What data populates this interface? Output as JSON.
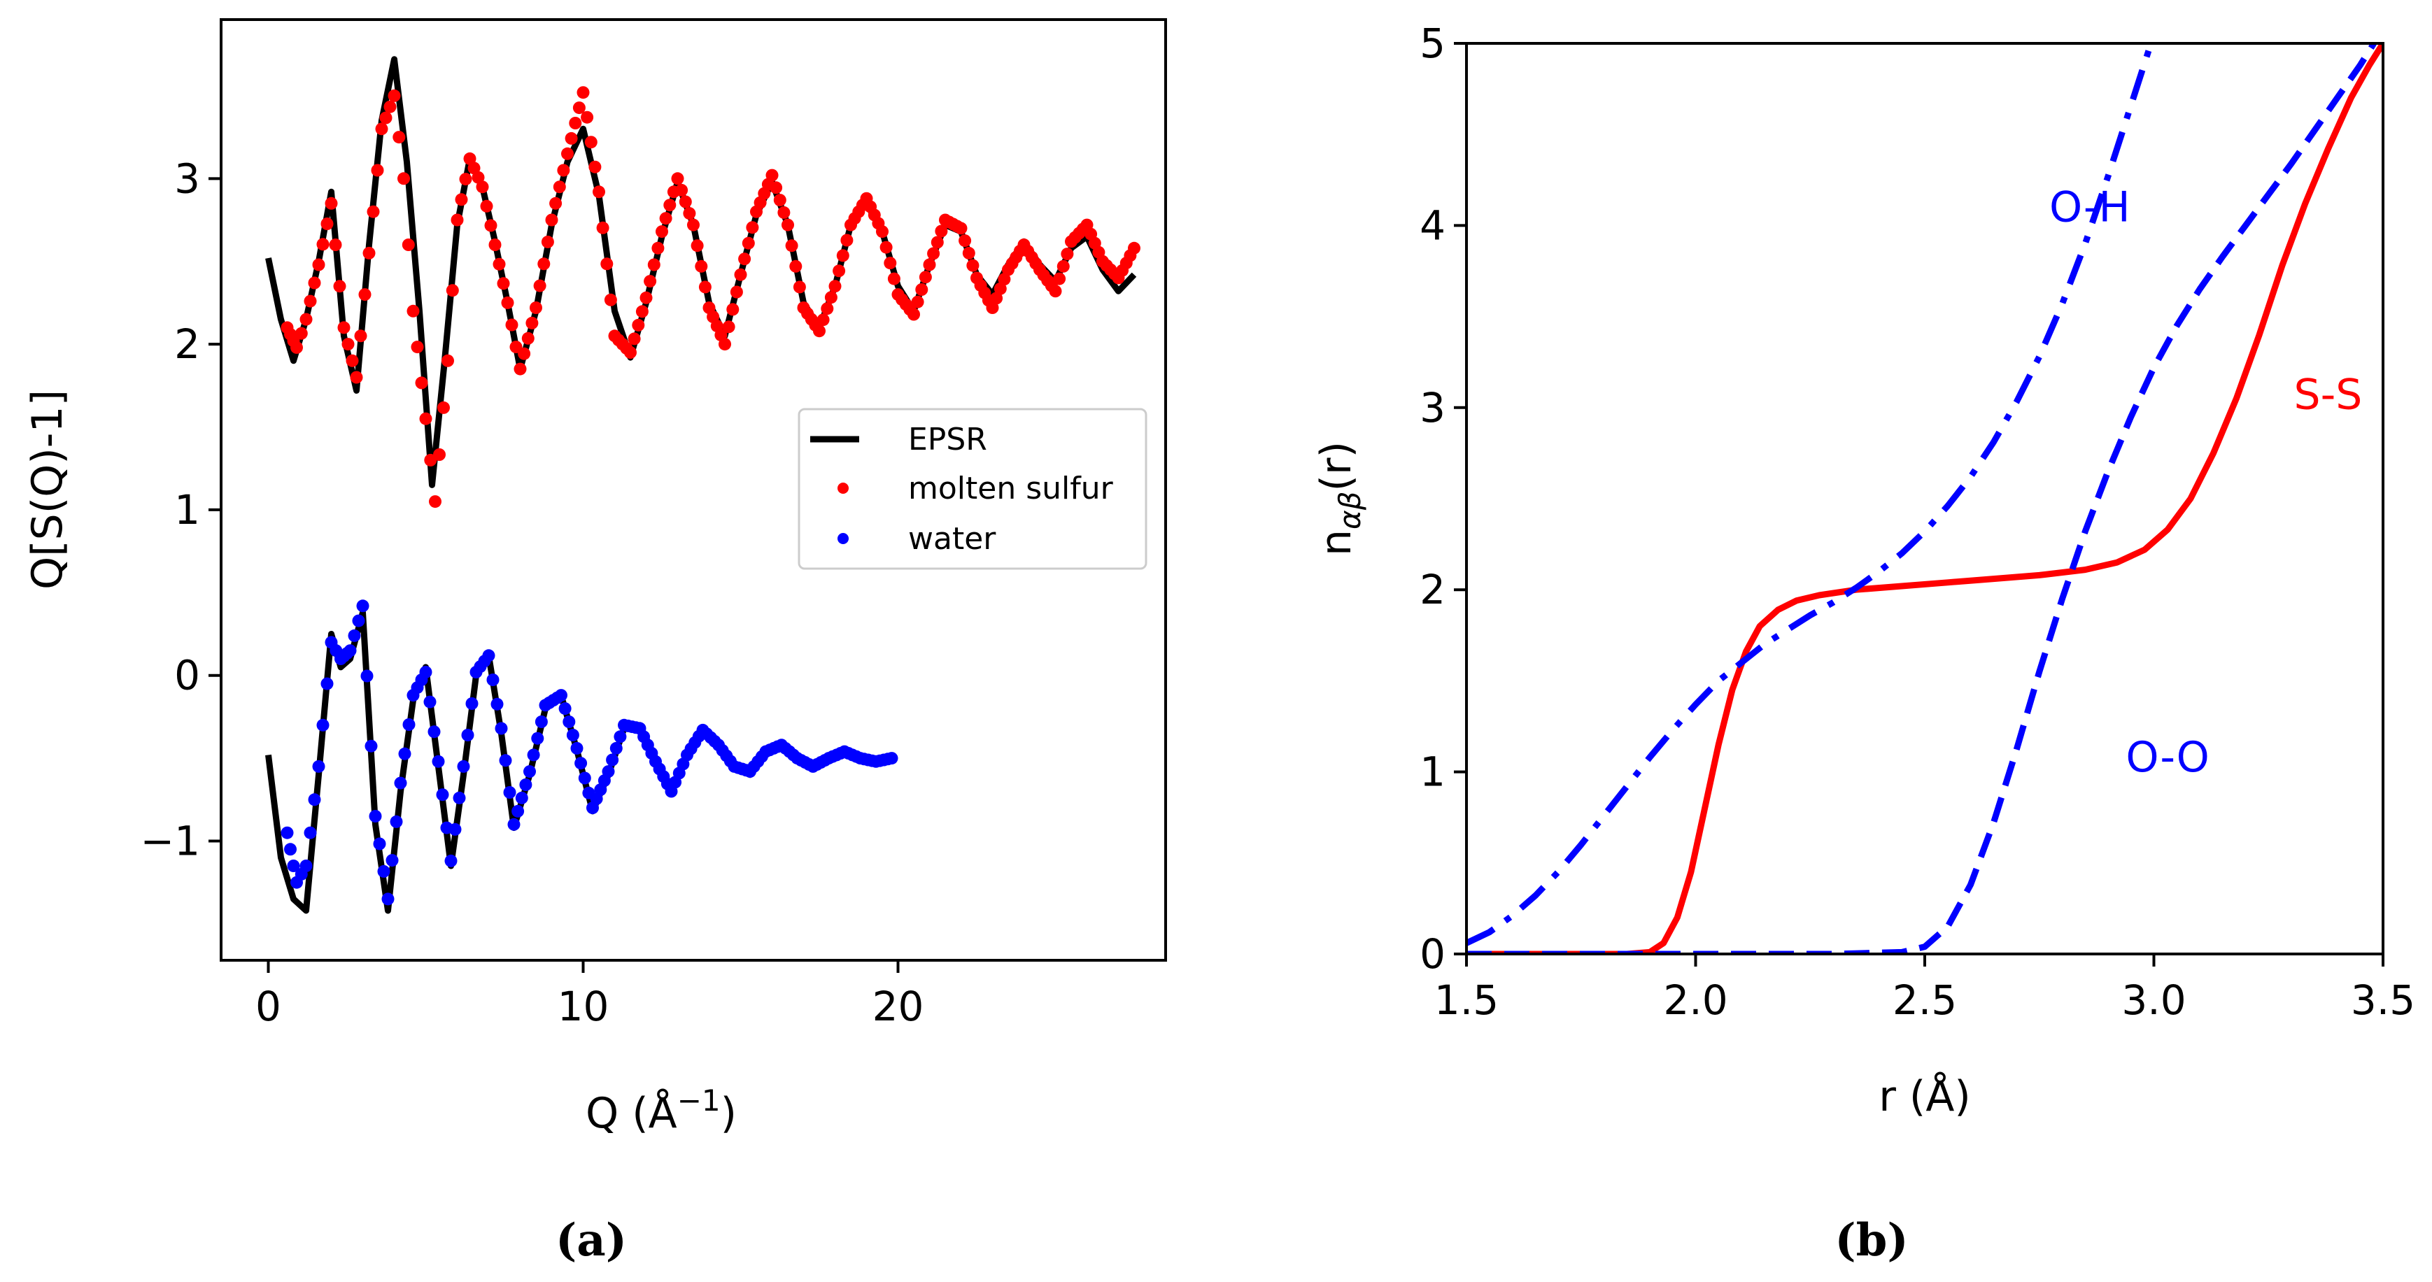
{
  "chart_data": [
    {
      "type": "line",
      "panel_label": "(a)",
      "xlabel": "Q (Å",
      "xlabel_sup": "−1",
      "xlabel_close": ")",
      "ylabel": "Q[S(Q)-1]",
      "xlim": [
        -1.5,
        28.5
      ],
      "ylim": [
        -1.72,
        3.96
      ],
      "xticks": [
        0,
        10,
        20
      ],
      "xtick_labels": [
        "0",
        "10",
        "20"
      ],
      "yticks": [
        -1,
        0,
        1,
        2,
        3
      ],
      "ytick_labels": [
        "−1",
        "0",
        "1",
        "2",
        "3"
      ],
      "grid": false,
      "legend_position": "center-right",
      "series": [
        {
          "name": "EPSR",
          "style": "solid-line",
          "color": "#000000",
          "groups": [
            {
              "x": [
                0.0,
                0.4,
                0.8,
                1.2,
                1.6,
                2.0,
                2.4,
                2.8,
                3.2,
                3.6,
                4.0,
                4.4,
                4.8,
                5.2,
                5.6,
                6.0,
                6.4,
                6.8,
                7.2,
                7.6,
                8.0,
                8.5,
                9.0,
                9.5,
                10.0,
                10.5,
                11.0,
                11.5,
                12.0,
                12.5,
                13.0,
                13.5,
                14.0,
                14.5,
                15.0,
                15.5,
                16.0,
                16.5,
                17.0,
                17.5,
                18.0,
                18.5,
                19.0,
                19.5,
                20.0,
                20.5,
                21.0,
                21.5,
                22.0,
                22.5,
                23.0,
                23.5,
                24.0,
                24.5,
                25.0,
                25.5,
                26.0,
                26.5,
                27.0,
                27.5
              ],
              "y": [
                2.52,
                2.15,
                1.9,
                2.15,
                2.5,
                2.92,
                2.05,
                1.72,
                2.6,
                3.35,
                3.72,
                3.1,
                2.2,
                1.15,
                1.9,
                2.72,
                3.12,
                2.95,
                2.62,
                2.25,
                1.85,
                2.2,
                2.72,
                3.1,
                3.3,
                2.9,
                2.2,
                1.92,
                2.25,
                2.65,
                2.98,
                2.72,
                2.25,
                2.05,
                2.42,
                2.78,
                2.98,
                2.72,
                2.25,
                2.1,
                2.35,
                2.72,
                2.85,
                2.68,
                2.35,
                2.2,
                2.48,
                2.72,
                2.68,
                2.42,
                2.3,
                2.48,
                2.62,
                2.48,
                2.38,
                2.58,
                2.65,
                2.45,
                2.32,
                2.42
              ]
            },
            {
              "x": [
                0.0,
                0.4,
                0.8,
                1.2,
                1.6,
                2.0,
                2.3,
                2.6,
                3.0,
                3.4,
                3.8,
                4.2,
                4.6,
                5.0,
                5.4,
                5.8,
                6.2,
                6.6,
                7.0,
                7.4,
                7.8,
                8.3,
                8.8,
                9.3,
                9.8,
                10.3,
                10.8,
                11.3,
                11.8,
                12.3,
                12.8,
                13.3,
                13.8,
                14.3,
                14.8,
                15.3,
                15.8,
                16.3,
                16.8,
                17.3,
                17.8,
                18.3,
                18.8,
                19.3,
                19.8
              ],
              "y": [
                -0.48,
                -1.1,
                -1.35,
                -1.42,
                -0.6,
                0.25,
                0.05,
                0.1,
                0.38,
                -0.9,
                -1.42,
                -0.7,
                -0.15,
                0.05,
                -0.55,
                -1.15,
                -0.6,
                0.0,
                0.12,
                -0.35,
                -0.92,
                -0.6,
                -0.2,
                -0.12,
                -0.45,
                -0.82,
                -0.6,
                -0.32,
                -0.3,
                -0.5,
                -0.7,
                -0.48,
                -0.35,
                -0.4,
                -0.55,
                -0.6,
                -0.48,
                -0.42,
                -0.48,
                -0.55,
                -0.5,
                -0.47,
                -0.5,
                -0.53,
                -0.5
              ]
            }
          ]
        },
        {
          "name": "molten sulfur",
          "style": "dots",
          "color": "#ff0000",
          "x": [
            0.6,
            0.9,
            1.2,
            1.6,
            2.0,
            2.4,
            2.8,
            3.2,
            3.6,
            4.0,
            4.3,
            4.6,
            5.0,
            5.3,
            5.7,
            6.0,
            6.4,
            6.8,
            7.2,
            7.6,
            8.0,
            8.5,
            9.0,
            9.5,
            10.0,
            10.5,
            11.0,
            11.5,
            12.0,
            12.5,
            13.0,
            13.5,
            14.0,
            14.5,
            15.0,
            15.5,
            16.0,
            16.5,
            17.0,
            17.5,
            18.0,
            18.5,
            19.0,
            19.5,
            20.0,
            20.5,
            21.0,
            21.5,
            22.0,
            22.5,
            23.0,
            23.5,
            24.0,
            24.5,
            25.0,
            25.5,
            26.0,
            26.5,
            27.0,
            27.5
          ],
          "y": [
            2.1,
            1.98,
            2.15,
            2.48,
            2.85,
            2.1,
            1.8,
            2.55,
            3.3,
            3.5,
            3.0,
            2.2,
            1.55,
            1.05,
            1.9,
            2.75,
            3.12,
            2.95,
            2.6,
            2.25,
            1.85,
            2.22,
            2.75,
            3.15,
            3.52,
            2.92,
            2.05,
            1.95,
            2.28,
            2.68,
            3.0,
            2.72,
            2.22,
            2.0,
            2.42,
            2.8,
            3.02,
            2.72,
            2.22,
            2.08,
            2.35,
            2.72,
            2.88,
            2.68,
            2.3,
            2.18,
            2.48,
            2.75,
            2.7,
            2.4,
            2.22,
            2.45,
            2.6,
            2.45,
            2.32,
            2.62,
            2.72,
            2.5,
            2.4,
            2.58
          ]
        },
        {
          "name": "water",
          "style": "dots",
          "color": "#0000ff",
          "x": [
            0.6,
            0.9,
            1.2,
            1.6,
            2.0,
            2.3,
            2.6,
            3.0,
            3.4,
            3.8,
            4.2,
            4.6,
            5.0,
            5.4,
            5.8,
            6.2,
            6.6,
            7.0,
            7.4,
            7.8,
            8.3,
            8.8,
            9.3,
            9.8,
            10.3,
            10.8,
            11.3,
            11.8,
            12.3,
            12.8,
            13.3,
            13.8,
            14.3,
            14.8,
            15.3,
            15.8,
            16.3,
            16.8,
            17.3,
            17.8,
            18.3,
            18.8,
            19.3,
            19.8
          ],
          "y": [
            -0.95,
            -1.25,
            -1.15,
            -0.55,
            0.2,
            0.1,
            0.15,
            0.42,
            -0.85,
            -1.35,
            -0.65,
            -0.12,
            0.02,
            -0.52,
            -1.12,
            -0.55,
            0.02,
            0.12,
            -0.32,
            -0.9,
            -0.58,
            -0.18,
            -0.12,
            -0.44,
            -0.8,
            -0.58,
            -0.3,
            -0.32,
            -0.52,
            -0.7,
            -0.48,
            -0.33,
            -0.42,
            -0.55,
            -0.58,
            -0.46,
            -0.42,
            -0.5,
            -0.55,
            -0.5,
            -0.46,
            -0.5,
            -0.52,
            -0.5
          ]
        }
      ]
    },
    {
      "type": "line",
      "panel_label": "(b)",
      "xlabel": "r (Å)",
      "ylabel": "n",
      "ylabel_sub": "αβ",
      "ylabel_tail": "(r)",
      "xlim": [
        1.5,
        3.5
      ],
      "ylim": [
        0,
        5
      ],
      "xticks": [
        1.5,
        2.0,
        2.5,
        3.0,
        3.5
      ],
      "xtick_labels": [
        "1.5",
        "2.0",
        "2.5",
        "3.0",
        "3.5"
      ],
      "yticks": [
        0,
        1,
        2,
        3,
        4,
        5
      ],
      "ytick_labels": [
        "0",
        "1",
        "2",
        "3",
        "4",
        "5"
      ],
      "grid": false,
      "series": [
        {
          "name": "S-S",
          "style": "solid",
          "color": "#ff0000",
          "x": [
            1.5,
            1.85,
            1.9,
            1.93,
            1.96,
            1.99,
            2.02,
            2.05,
            2.08,
            2.11,
            2.14,
            2.18,
            2.22,
            2.27,
            2.35,
            2.45,
            2.55,
            2.65,
            2.75,
            2.85,
            2.92,
            2.98,
            3.03,
            3.08,
            3.13,
            3.18,
            3.23,
            3.28,
            3.33,
            3.38,
            3.43,
            3.47,
            3.5
          ],
          "y": [
            0.0,
            0.0,
            0.01,
            0.06,
            0.2,
            0.45,
            0.8,
            1.15,
            1.45,
            1.66,
            1.8,
            1.89,
            1.94,
            1.97,
            2.0,
            2.02,
            2.04,
            2.06,
            2.08,
            2.11,
            2.15,
            2.22,
            2.33,
            2.5,
            2.75,
            3.05,
            3.4,
            3.78,
            4.12,
            4.42,
            4.7,
            4.88,
            5.0
          ]
        },
        {
          "name": "O-H",
          "style": "dash-dot",
          "color": "#0000ff",
          "x": [
            1.5,
            1.55,
            1.6,
            1.65,
            1.7,
            1.75,
            1.8,
            1.85,
            1.9,
            1.95,
            2.0,
            2.05,
            2.1,
            2.15,
            2.2,
            2.25,
            2.3,
            2.35,
            2.4,
            2.45,
            2.5,
            2.55,
            2.6,
            2.65,
            2.7,
            2.75,
            2.8,
            2.85,
            2.9,
            2.95,
            3.0
          ],
          "y": [
            0.06,
            0.12,
            0.21,
            0.32,
            0.45,
            0.6,
            0.76,
            0.92,
            1.08,
            1.23,
            1.37,
            1.5,
            1.6,
            1.7,
            1.78,
            1.86,
            1.93,
            2.01,
            2.1,
            2.2,
            2.32,
            2.46,
            2.62,
            2.81,
            3.03,
            3.28,
            3.57,
            3.9,
            4.27,
            4.66,
            5.05
          ]
        },
        {
          "name": "O-O",
          "style": "dashed",
          "color": "#0000ff",
          "x": [
            1.5,
            2.3,
            2.45,
            2.5,
            2.55,
            2.6,
            2.65,
            2.7,
            2.75,
            2.8,
            2.85,
            2.9,
            2.95,
            3.0,
            3.05,
            3.1,
            3.15,
            3.2,
            3.25,
            3.3,
            3.35,
            3.4,
            3.45,
            3.48
          ],
          "y": [
            0.0,
            0.0,
            0.01,
            0.04,
            0.15,
            0.38,
            0.72,
            1.12,
            1.55,
            1.95,
            2.32,
            2.65,
            2.95,
            3.22,
            3.45,
            3.65,
            3.83,
            4.0,
            4.17,
            4.34,
            4.52,
            4.7,
            4.88,
            5.0
          ]
        }
      ],
      "annotations": [
        {
          "text": "O-H",
          "x": 2.86,
          "y": 4.1,
          "color": "#0000ff"
        },
        {
          "text": "S-S",
          "x": 3.38,
          "y": 3.07,
          "color": "#ff0000"
        },
        {
          "text": "O-O",
          "x": 3.03,
          "y": 1.08,
          "color": "#0000ff"
        }
      ]
    }
  ]
}
